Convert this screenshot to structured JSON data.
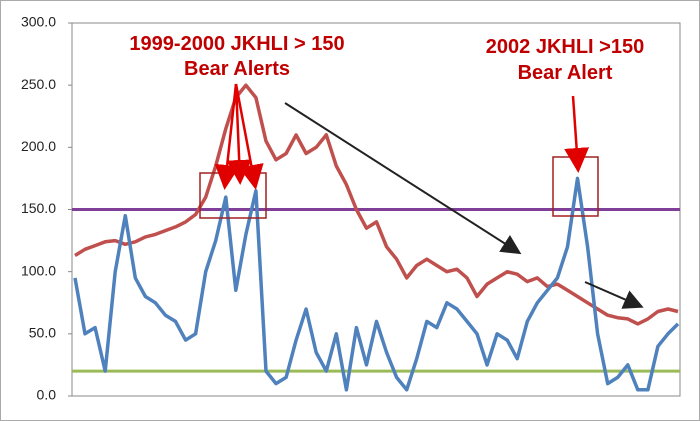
{
  "chart_data": {
    "type": "line",
    "annotations": [
      "1999-2000 JKHLI > 150",
      "Bear Alerts",
      "2002 JKHLI >150",
      "Bear Alert"
    ],
    "series": [
      {
        "color": "#c0504d",
        "values": [
          113,
          118,
          121,
          124,
          125,
          122,
          124,
          128,
          130,
          133,
          136,
          140,
          146,
          160,
          185,
          215,
          240,
          250,
          240,
          205,
          190,
          195,
          210,
          195,
          200,
          210,
          185,
          170,
          150,
          135,
          140,
          120,
          110,
          95,
          105,
          110,
          105,
          100,
          102,
          95,
          80,
          90,
          95,
          100,
          98,
          92,
          95,
          88,
          90,
          85,
          80,
          75,
          70,
          65,
          63,
          62,
          58,
          62,
          68,
          70,
          68
        ]
      },
      {
        "color": "#4f81bd",
        "values": [
          95,
          50,
          55,
          20,
          100,
          145,
          95,
          80,
          75,
          65,
          60,
          45,
          50,
          100,
          125,
          160,
          85,
          130,
          165,
          20,
          10,
          15,
          45,
          70,
          35,
          20,
          50,
          5,
          55,
          25,
          60,
          35,
          15,
          5,
          30,
          60,
          55,
          75,
          70,
          60,
          50,
          25,
          50,
          45,
          30,
          60,
          75,
          85,
          95,
          120,
          175,
          120,
          50,
          10,
          15,
          25,
          5,
          5,
          40,
          50,
          58
        ]
      }
    ],
    "reference_lines": [
      {
        "value": 150,
        "color": "#7f3f98"
      },
      {
        "value": 20,
        "color": "#9bbb59"
      }
    ],
    "ylim": [
      0,
      300
    ],
    "yticks": [
      {
        "value": 0,
        "label": "0.0"
      },
      {
        "value": 50,
        "label": "50.0"
      },
      {
        "value": 100,
        "label": "100.0"
      },
      {
        "value": 150,
        "label": "150.0"
      },
      {
        "value": 200,
        "label": "200.0"
      },
      {
        "value": 250,
        "label": "250.0"
      },
      {
        "value": 300,
        "label": "300.0"
      }
    ],
    "grid": false
  }
}
